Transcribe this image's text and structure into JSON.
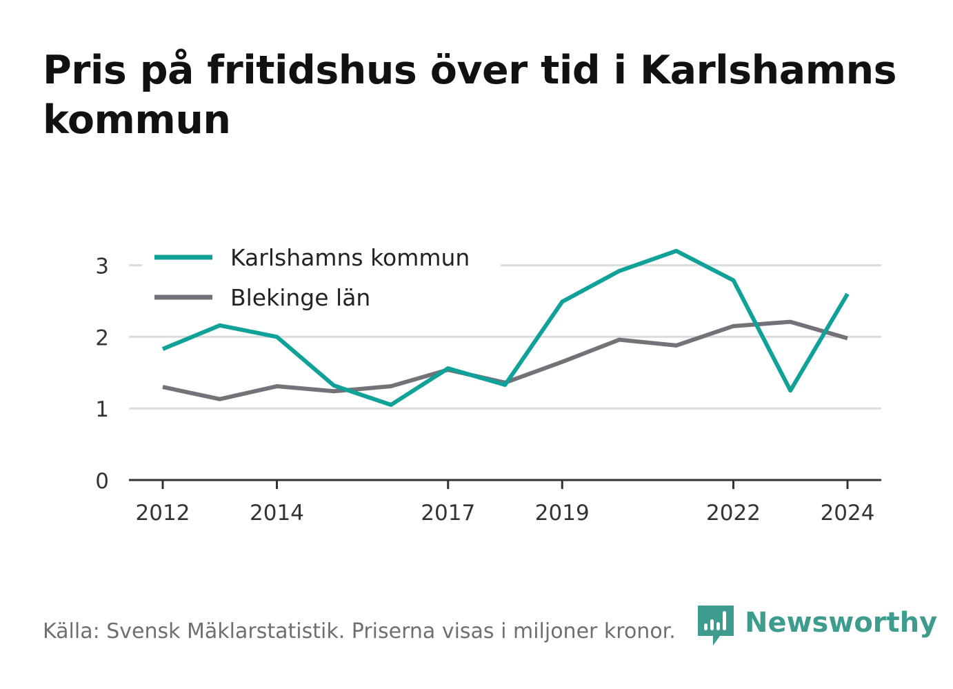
{
  "header": {
    "title": "Pris på fritidshus över tid i Karlshamns kommun"
  },
  "footer": {
    "source": "Källa: Svensk Mäklarstatistik. Priserna visas i miljoner kronor."
  },
  "brand": {
    "name": "Newsworthy",
    "color": "#3e9c8f",
    "icon": "newsworthy-bar-chart-logo-icon"
  },
  "chart_data": {
    "type": "line",
    "title": "Pris på fritidshus över tid i Karlshamns kommun",
    "xlabel": "",
    "ylabel": "",
    "x": [
      2012,
      2013,
      2014,
      2015,
      2016,
      2017,
      2018,
      2019,
      2020,
      2021,
      2022,
      2023,
      2024
    ],
    "x_ticks": [
      "2012",
      "2014",
      "2017",
      "2019",
      "2022",
      "2024"
    ],
    "y_ticks": [
      "0",
      "1",
      "2",
      "3"
    ],
    "xlim": [
      2011.4,
      2024.6
    ],
    "ylim": [
      0,
      3.3
    ],
    "grid": true,
    "legend_position": "top-left",
    "series": [
      {
        "name": "Karlshamns kommun",
        "color": "#10a198",
        "values": [
          1.83,
          2.16,
          2.0,
          1.32,
          1.05,
          1.56,
          1.33,
          2.49,
          2.92,
          3.2,
          2.79,
          1.25,
          2.6
        ]
      },
      {
        "name": "Blekinge län",
        "color": "#737278",
        "values": [
          1.3,
          1.13,
          1.31,
          1.24,
          1.31,
          1.54,
          1.36,
          1.65,
          1.96,
          1.88,
          2.15,
          2.21,
          1.98
        ]
      }
    ]
  }
}
